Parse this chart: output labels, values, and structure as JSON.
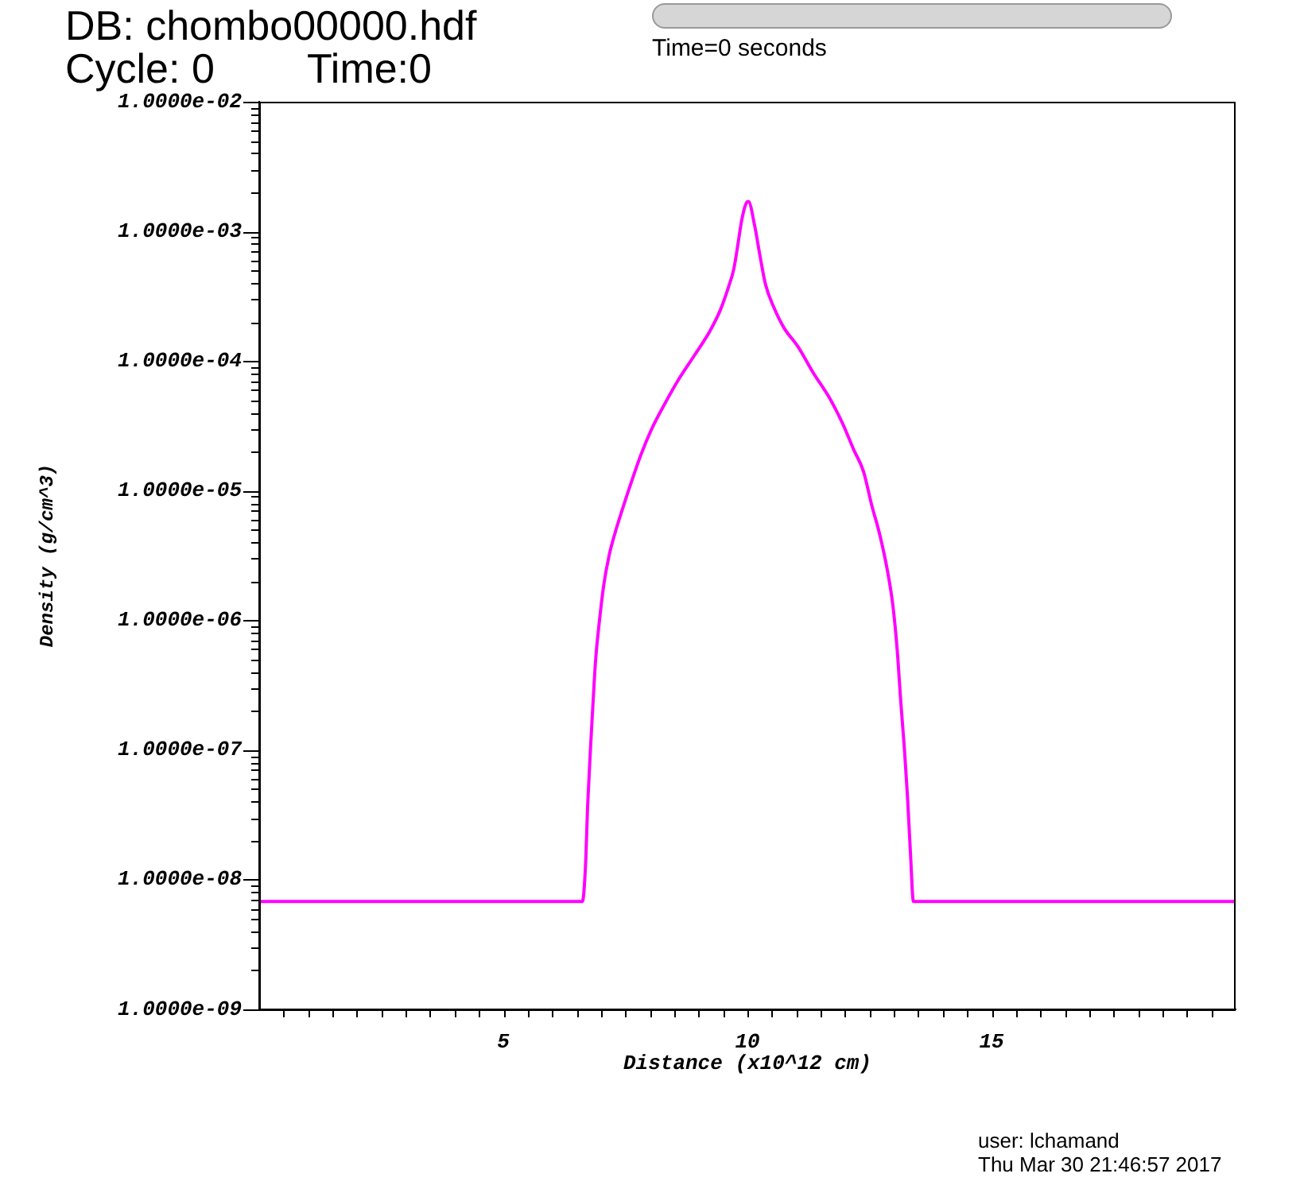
{
  "chart_data": {
    "type": "line",
    "xlabel": "Distance (x10^12 cm)",
    "ylabel": "Density (g/cm^3)",
    "log": "y",
    "marker": "none",
    "color": "#ff00ff",
    "annotations": [
      "DB: chombo00000.hdf",
      "Cycle: 0",
      "Time:0",
      "Time=0 seconds",
      "user: lchamand",
      "Thu Mar 30 21:46:57 2017"
    ],
    "xlim": [
      0,
      20
    ],
    "ylim": [
      1e-09,
      0.01
    ],
    "xticks": [
      {
        "value": 0.5,
        "label": null
      },
      {
        "value": 1,
        "label": null
      },
      {
        "value": 1.5,
        "label": null
      },
      {
        "value": 2,
        "label": null
      },
      {
        "value": 2.5,
        "label": null
      },
      {
        "value": 3,
        "label": null
      },
      {
        "value": 3.5,
        "label": null
      },
      {
        "value": 4,
        "label": null
      },
      {
        "value": 4.5,
        "label": null
      },
      5,
      {
        "value": 5.5,
        "label": null
      },
      {
        "value": 6,
        "label": null
      },
      {
        "value": 6.5,
        "label": null
      },
      {
        "value": 7,
        "label": null
      },
      {
        "value": 7.5,
        "label": null
      },
      {
        "value": 8,
        "label": null
      },
      {
        "value": 8.5,
        "label": null
      },
      {
        "value": 9,
        "label": null
      },
      {
        "value": 9.5,
        "label": null
      },
      10,
      {
        "value": 10.5,
        "label": null
      },
      {
        "value": 11,
        "label": null
      },
      {
        "value": 11.5,
        "label": null
      },
      {
        "value": 12,
        "label": null
      },
      {
        "value": 12.5,
        "label": null
      },
      {
        "value": 13,
        "label": null
      },
      {
        "value": 13.5,
        "label": null
      },
      {
        "value": 14,
        "label": null
      },
      {
        "value": 14.5,
        "label": null
      },
      15,
      {
        "value": 15.5,
        "label": null
      },
      {
        "value": 16,
        "label": null
      },
      {
        "value": 16.5,
        "label": null
      },
      {
        "value": 17,
        "label": null
      },
      {
        "value": 17.5,
        "label": null
      },
      {
        "value": 18,
        "label": null
      },
      {
        "value": 18.5,
        "label": null
      },
      {
        "value": 19,
        "label": null
      },
      {
        "value": 19.5,
        "label": null
      }
    ],
    "yticks": [
      {
        "value": 1e-09,
        "label": "1.0000e-09"
      },
      {
        "value": 2e-09,
        "label": null
      },
      {
        "value": 3e-09,
        "label": null
      },
      {
        "value": 4e-09,
        "label": null
      },
      {
        "value": 5e-09,
        "label": null
      },
      {
        "value": 6e-09,
        "label": null
      },
      {
        "value": 7e-09,
        "label": null
      },
      {
        "value": 8e-09,
        "label": null
      },
      {
        "value": 9e-09,
        "label": null
      },
      {
        "value": 1e-08,
        "label": "1.0000e-08"
      },
      {
        "value": 2e-08,
        "label": null
      },
      {
        "value": 3e-08,
        "label": null
      },
      {
        "value": 4e-08,
        "label": null
      },
      {
        "value": 5e-08,
        "label": null
      },
      {
        "value": 6e-08,
        "label": null
      },
      {
        "value": 7e-08,
        "label": null
      },
      {
        "value": 8e-08,
        "label": null
      },
      {
        "value": 9e-08,
        "label": null
      },
      {
        "value": 1e-07,
        "label": "1.0000e-07"
      },
      {
        "value": 2e-07,
        "label": null
      },
      {
        "value": 3e-07,
        "label": null
      },
      {
        "value": 4e-07,
        "label": null
      },
      {
        "value": 5e-07,
        "label": null
      },
      {
        "value": 6e-07,
        "label": null
      },
      {
        "value": 7e-07,
        "label": null
      },
      {
        "value": 8e-07,
        "label": null
      },
      {
        "value": 9e-07,
        "label": null
      },
      {
        "value": 1e-06,
        "label": "1.0000e-06"
      },
      {
        "value": 2e-06,
        "label": null
      },
      {
        "value": 3e-06,
        "label": null
      },
      {
        "value": 4e-06,
        "label": null
      },
      {
        "value": 5e-06,
        "label": null
      },
      {
        "value": 6e-06,
        "label": null
      },
      {
        "value": 7e-06,
        "label": null
      },
      {
        "value": 8e-06,
        "label": null
      },
      {
        "value": 9e-06,
        "label": null
      },
      {
        "value": 1e-05,
        "label": "1.0000e-05"
      },
      {
        "value": 2e-05,
        "label": null
      },
      {
        "value": 3e-05,
        "label": null
      },
      {
        "value": 4e-05,
        "label": null
      },
      {
        "value": 5e-05,
        "label": null
      },
      {
        "value": 6e-05,
        "label": null
      },
      {
        "value": 7e-05,
        "label": null
      },
      {
        "value": 8e-05,
        "label": null
      },
      {
        "value": 9e-05,
        "label": null
      },
      {
        "value": 0.0001,
        "label": "1.0000e-04"
      },
      {
        "value": 0.0002,
        "label": null
      },
      {
        "value": 0.0003,
        "label": null
      },
      {
        "value": 0.0004,
        "label": null
      },
      {
        "value": 0.0005,
        "label": null
      },
      {
        "value": 0.0006,
        "label": null
      },
      {
        "value": 0.0007,
        "label": null
      },
      {
        "value": 0.0008,
        "label": null
      },
      {
        "value": 0.0009,
        "label": null
      },
      {
        "value": 0.001,
        "label": "1.0000e-03"
      },
      {
        "value": 0.002,
        "label": null
      },
      {
        "value": 0.003,
        "label": null
      },
      {
        "value": 0.004,
        "label": null
      },
      {
        "value": 0.005,
        "label": null
      },
      {
        "value": 0.006,
        "label": null
      },
      {
        "value": 0.007,
        "label": null
      },
      {
        "value": 0.008,
        "label": null
      },
      {
        "value": 0.009,
        "label": null
      },
      {
        "value": 0.01,
        "label": "1.0000e-02"
      }
    ],
    "x": [
      0,
      6.62,
      6.68,
      6.73,
      6.79,
      6.84,
      6.89,
      6.97,
      7.06,
      7.17,
      7.28,
      7.44,
      7.6,
      7.82,
      8.04,
      8.31,
      8.58,
      8.91,
      9.23,
      9.45,
      9.61,
      9.72,
      9.8,
      9.88,
      9.96,
      10.02,
      10.15,
      10.26,
      10.37,
      10.54,
      10.75,
      11.03,
      11.35,
      11.68,
      11.95,
      12.17,
      12.38,
      12.54,
      12.71,
      12.87,
      12.98,
      13.07,
      13.14,
      13.22,
      13.28,
      13.34,
      13.4,
      20
    ],
    "values": [
      6.8e-09,
      6.8e-09,
      1.2e-08,
      3.9e-08,
      1.1e-07,
      2.4e-07,
      4.9e-07,
      1e-06,
      1.9e-06,
      3.2e-06,
      4.6e-06,
      7.2e-06,
      1.1e-05,
      1.9e-05,
      3e-05,
      4.7e-05,
      7.1e-05,
      0.00011,
      0.00017,
      0.00025,
      0.00037,
      0.00051,
      0.00077,
      0.0012,
      0.0016,
      0.0017,
      0.0011,
      0.00064,
      0.00039,
      0.00026,
      0.00018,
      0.00013,
      8.1e-05,
      5.2e-05,
      3.3e-05,
      2.1e-05,
      1.4e-05,
      7.9e-06,
      4.6e-06,
      2.4e-06,
      1.3e-06,
      5.8e-07,
      2.4e-07,
      9.7e-08,
      4.3e-08,
      1.6e-08,
      6.8e-09,
      6.8e-09
    ]
  }
}
